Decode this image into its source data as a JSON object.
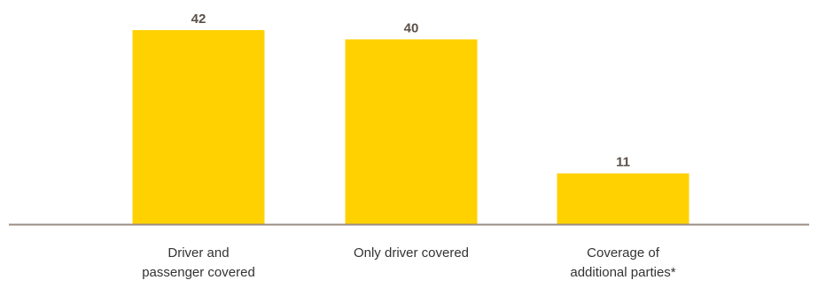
{
  "chart_data": {
    "type": "bar",
    "categories": [
      [
        "Driver and",
        "passenger covered"
      ],
      [
        "Only driver covered"
      ],
      [
        "Coverage of",
        "additional parties*"
      ]
    ],
    "values": [
      42,
      40,
      11
    ],
    "title": "",
    "xlabel": "",
    "ylabel": "",
    "ylim": [
      0,
      42
    ],
    "grid": false,
    "legend": "none",
    "colors": {
      "bar": "#FFD100",
      "baseline": "#9a8c84",
      "value_text": "#5a5048",
      "label_text": "#333333"
    }
  }
}
